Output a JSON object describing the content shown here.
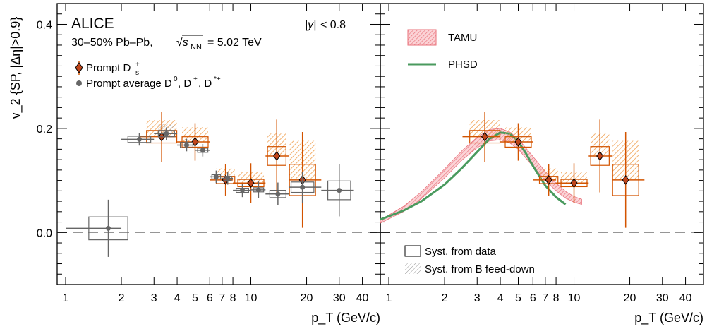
{
  "chart_data": [
    {
      "type": "scatter",
      "panel": "left",
      "xscale": "log",
      "xlim": [
        0.9,
        50
      ],
      "ylim": [
        -0.1,
        0.44
      ],
      "xlabel": "p_T (GeV/c)",
      "ylabel": "v_2 {SP, |Δη|>0.9}",
      "xticks": [
        1,
        2,
        3,
        4,
        5,
        6,
        7,
        8,
        10,
        20,
        30,
        40
      ],
      "xtick_labels": [
        "1",
        "2",
        "3",
        "4",
        "5",
        "6",
        "7",
        "8",
        "10",
        "20",
        "30",
        "40"
      ],
      "yticks": [
        0.0,
        0.2,
        0.4
      ],
      "ytick_labels": [
        "0.0",
        "0.2",
        "0.4"
      ],
      "annotations": {
        "experiment": "ALICE",
        "system": "30–50% Pb–Pb,",
        "energy": "= 5.02 TeV",
        "rapidity": "< 0.8"
      },
      "legend": {
        "position": "top-left",
        "ds_label": "Prompt D",
        "avg_label": "Prompt average D"
      },
      "series": [
        {
          "name": "Prompt Ds+",
          "marker": "diamond",
          "color": "#d35400",
          "fill": "#c0451a",
          "points": [
            {
              "x": 3.3,
              "y": 0.184,
              "xlo": 2.5,
              "xhi": 4.0,
              "stat": 0.048,
              "syst": 0.012,
              "fd_hi": 0.02
            },
            {
              "x": 5.0,
              "y": 0.174,
              "xlo": 4.0,
              "xhi": 6.0,
              "stat": 0.036,
              "syst": 0.01,
              "fd_hi": 0.018
            },
            {
              "x": 7.3,
              "y": 0.101,
              "xlo": 6.0,
              "xhi": 8.0,
              "stat": 0.03,
              "syst": 0.007,
              "fd_hi": 0.015
            },
            {
              "x": 10.0,
              "y": 0.095,
              "xlo": 8.0,
              "xhi": 12.0,
              "stat": 0.038,
              "syst": 0.007,
              "fd_hi": 0.015
            },
            {
              "x": 13.8,
              "y": 0.147,
              "xlo": 12.0,
              "xhi": 16.0,
              "stat": 0.07,
              "syst": 0.018,
              "fd_hi": 0.025
            },
            {
              "x": 19.0,
              "y": 0.101,
              "xlo": 16.0,
              "xhi": 24.0,
              "stat": 0.092,
              "syst": 0.03,
              "fd_hi": 0.045
            }
          ]
        },
        {
          "name": "Prompt average D0, D+, D*+",
          "marker": "circle",
          "color": "#666666",
          "fill": "#666666",
          "points": [
            {
              "x": 1.7,
              "y": 0.008,
              "xlo": 1.0,
              "xhi": 2.0,
              "stat": 0.055,
              "syst": 0.022,
              "fd_hi": 0.0
            },
            {
              "x": 2.5,
              "y": 0.179,
              "xlo": 2.0,
              "xhi": 3.0,
              "stat": 0.012,
              "syst": 0.006,
              "fd_hi": 0.0
            },
            {
              "x": 3.5,
              "y": 0.19,
              "xlo": 3.0,
              "xhi": 4.0,
              "stat": 0.012,
              "syst": 0.006,
              "fd_hi": 0.012
            },
            {
              "x": 4.5,
              "y": 0.168,
              "xlo": 4.0,
              "xhi": 5.0,
              "stat": 0.012,
              "syst": 0.005,
              "fd_hi": 0.0
            },
            {
              "x": 5.5,
              "y": 0.158,
              "xlo": 5.0,
              "xhi": 6.0,
              "stat": 0.012,
              "syst": 0.004,
              "fd_hi": 0.0
            },
            {
              "x": 6.5,
              "y": 0.107,
              "xlo": 6.0,
              "xhi": 7.0,
              "stat": 0.012,
              "syst": 0.004,
              "fd_hi": 0.0
            },
            {
              "x": 7.5,
              "y": 0.104,
              "xlo": 7.0,
              "xhi": 8.0,
              "stat": 0.012,
              "syst": 0.004,
              "fd_hi": 0.0
            },
            {
              "x": 9.0,
              "y": 0.081,
              "xlo": 8.0,
              "xhi": 10.0,
              "stat": 0.013,
              "syst": 0.004,
              "fd_hi": 0.0
            },
            {
              "x": 11.0,
              "y": 0.082,
              "xlo": 10.0,
              "xhi": 12.0,
              "stat": 0.016,
              "syst": 0.004,
              "fd_hi": 0.0
            },
            {
              "x": 14.0,
              "y": 0.074,
              "xlo": 12.0,
              "xhi": 16.0,
              "stat": 0.022,
              "syst": 0.007,
              "fd_hi": 0.0
            },
            {
              "x": 19.0,
              "y": 0.087,
              "xlo": 16.0,
              "xhi": 24.0,
              "stat": 0.03,
              "syst": 0.01,
              "fd_hi": 0.0
            },
            {
              "x": 30.0,
              "y": 0.081,
              "xlo": 24.0,
              "xhi": 36.0,
              "stat": 0.05,
              "syst": 0.018,
              "fd_hi": 0.0
            }
          ]
        }
      ]
    },
    {
      "type": "scatter",
      "panel": "right",
      "xscale": "log",
      "xlim": [
        0.9,
        50
      ],
      "ylim": [
        -0.1,
        0.44
      ],
      "xlabel": "p_T (GeV/c)",
      "xticks": [
        1,
        2,
        3,
        4,
        5,
        6,
        7,
        8,
        10,
        20,
        30,
        40
      ],
      "xtick_labels": [
        "1",
        "2",
        "3",
        "4",
        "5",
        "6",
        "7",
        "8",
        "10",
        "20",
        "30",
        "40"
      ],
      "legend": {
        "tamu": "TAMU",
        "phsd": "PHSD",
        "syst_data": "Syst. from data",
        "syst_fd": "Syst. from B feed-down"
      },
      "series": [
        {
          "name": "Prompt Ds+",
          "marker": "diamond",
          "color": "#d35400",
          "fill": "#c0451a",
          "points": [
            {
              "x": 3.3,
              "y": 0.184,
              "xlo": 2.5,
              "xhi": 4.0,
              "stat": 0.048,
              "syst": 0.012,
              "fd_hi": 0.02
            },
            {
              "x": 5.0,
              "y": 0.174,
              "xlo": 4.0,
              "xhi": 6.0,
              "stat": 0.036,
              "syst": 0.01,
              "fd_hi": 0.018
            },
            {
              "x": 7.3,
              "y": 0.101,
              "xlo": 6.0,
              "xhi": 8.0,
              "stat": 0.03,
              "syst": 0.007,
              "fd_hi": 0.015
            },
            {
              "x": 10.0,
              "y": 0.095,
              "xlo": 8.0,
              "xhi": 12.0,
              "stat": 0.038,
              "syst": 0.007,
              "fd_hi": 0.015
            },
            {
              "x": 13.8,
              "y": 0.147,
              "xlo": 12.0,
              "xhi": 16.0,
              "stat": 0.07,
              "syst": 0.018,
              "fd_hi": 0.025
            },
            {
              "x": 19.0,
              "y": 0.101,
              "xlo": 16.0,
              "xhi": 24.0,
              "stat": 0.092,
              "syst": 0.03,
              "fd_hi": 0.045
            }
          ]
        }
      ],
      "models": {
        "TAMU": {
          "color": "#e8707a",
          "x": [
            0.9,
            1.2,
            1.5,
            2.0,
            2.5,
            3.0,
            3.5,
            4.0,
            4.5,
            5.0,
            6.0,
            7.0,
            8.0,
            9.0,
            10.0,
            11.0
          ],
          "lower": [
            0.018,
            0.04,
            0.065,
            0.105,
            0.14,
            0.163,
            0.176,
            0.178,
            0.172,
            0.16,
            0.127,
            0.1,
            0.08,
            0.066,
            0.058,
            0.054
          ],
          "upper": [
            0.024,
            0.05,
            0.078,
            0.122,
            0.158,
            0.183,
            0.198,
            0.2,
            0.193,
            0.18,
            0.146,
            0.117,
            0.095,
            0.079,
            0.069,
            0.064
          ]
        },
        "PHSD": {
          "color": "#4a9a5e",
          "x": [
            0.9,
            1.2,
            1.5,
            2.0,
            2.5,
            3.0,
            3.5,
            4.0,
            4.5,
            5.0,
            5.5,
            6.0,
            7.0,
            8.0,
            9.0
          ],
          "y": [
            0.025,
            0.042,
            0.06,
            0.092,
            0.125,
            0.155,
            0.18,
            0.192,
            0.19,
            0.175,
            0.152,
            0.128,
            0.09,
            0.068,
            0.054
          ]
        }
      }
    }
  ]
}
